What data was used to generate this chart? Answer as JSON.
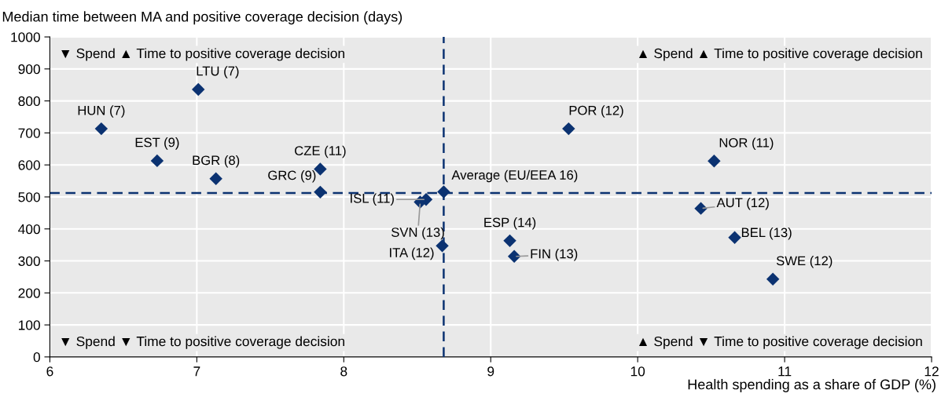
{
  "chart_data": {
    "type": "scatter",
    "ylabel": "Median time between MA and positive coverage decision (days)",
    "xlabel": "Health spending as a share of GDP (%)",
    "x": [
      6.35,
      7.01,
      6.73,
      7.13,
      7.84,
      7.84,
      8.56,
      8.52,
      8.68,
      8.67,
      9.13,
      9.16,
      9.53,
      10.52,
      10.43,
      10.66,
      10.92
    ],
    "series": [
      {
        "color": "#0b3271",
        "values": [
          713,
          836,
          613,
          557,
          587,
          515,
          492,
          484,
          516,
          347,
          363,
          314,
          713,
          612,
          464,
          373,
          243
        ]
      }
    ],
    "marker": "diamond",
    "annotations": [
      {
        "text": "HUN (7)",
        "x": 6.35,
        "y": 713
      },
      {
        "text": "LTU (7)",
        "x": 7.01,
        "y": 836
      },
      {
        "text": "EST (9)",
        "x": 6.73,
        "y": 613
      },
      {
        "text": "BGR (8)",
        "x": 7.13,
        "y": 557
      },
      {
        "text": "CZE (11)",
        "x": 7.84,
        "y": 587
      },
      {
        "text": "GRC (9)",
        "x": 7.84,
        "y": 515
      },
      {
        "text": "ISL (11)",
        "x": 8.56,
        "y": 492
      },
      {
        "text": "SVN (13)",
        "x": 8.52,
        "y": 484
      },
      {
        "text": "Average (EU/EEA 16)",
        "x": 8.68,
        "y": 516
      },
      {
        "text": "ITA (12)",
        "x": 8.67,
        "y": 347
      },
      {
        "text": "ESP (14)",
        "x": 9.13,
        "y": 363
      },
      {
        "text": "FIN (13)",
        "x": 9.16,
        "y": 314
      },
      {
        "text": "POR (12)",
        "x": 9.53,
        "y": 713
      },
      {
        "text": "NOR (11)",
        "x": 10.52,
        "y": 612
      },
      {
        "text": "AUT (12)",
        "x": 10.43,
        "y": 464
      },
      {
        "text": "BEL (13)",
        "x": 10.66,
        "y": 373
      },
      {
        "text": "SWE (12)",
        "x": 10.92,
        "y": 243
      },
      "▼ Spend ▲ Time to positive coverage decision",
      "▲ Spend ▲ Time to positive coverage decision",
      "▼ Spend ▼ Time to positive coverage decision",
      "▲ Spend ▼ Time to positive coverage decision"
    ],
    "ref_lines": [
      {
        "axis": "x",
        "value": 8.68,
        "color": "#0b3271",
        "line_style": "dashed"
      },
      {
        "axis": "y",
        "value": 512,
        "color": "#0b3271",
        "line_style": "dashed"
      }
    ],
    "xlim": [
      6,
      12
    ],
    "xticks": [
      6,
      7,
      8,
      9,
      10,
      11,
      12
    ],
    "ylim": [
      0,
      1000
    ],
    "yticks": [
      0,
      100,
      200,
      300,
      400,
      500,
      600,
      700,
      800,
      900,
      1000
    ],
    "grid": true
  }
}
